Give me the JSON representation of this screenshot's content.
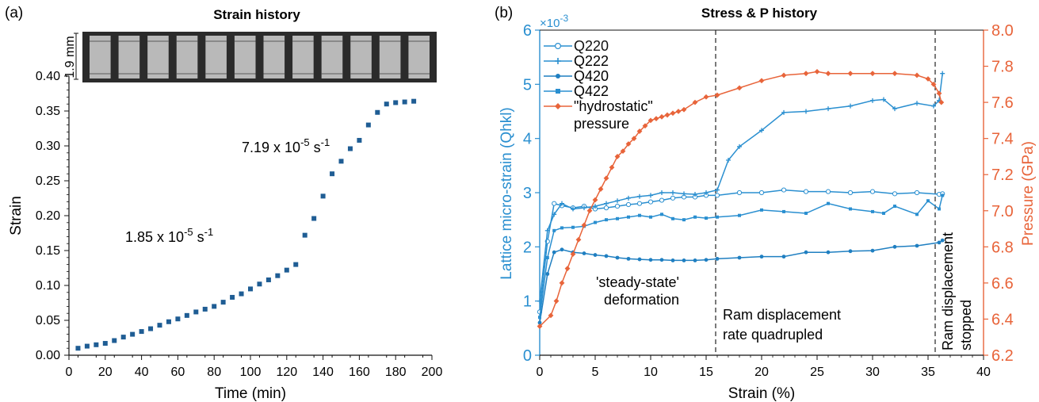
{
  "panel_a": {
    "panel_label": "(a)",
    "title": "Strain history",
    "scale_label": "1.9 mm",
    "xlabel": "Time (min)",
    "ylabel": "Strain",
    "x_ticks": [
      "0",
      "20",
      "40",
      "60",
      "80",
      "100",
      "120",
      "140",
      "160",
      "180",
      "200"
    ],
    "y_ticks": [
      "0.00",
      "0.05",
      "0.10",
      "0.15",
      "0.20",
      "0.25",
      "0.30",
      "0.35",
      "0.40"
    ],
    "annotation_rate1_base": "1.85 x 10",
    "annotation_rate1_exp": "-5",
    "annotation_rate1_unit": " s",
    "annotation_rate1_unit_exp": "-1",
    "annotation_rate2_base": "7.19 x 10",
    "annotation_rate2_exp": "-5",
    "annotation_rate2_unit": " s",
    "annotation_rate2_unit_exp": "-1",
    "radiograph_frames": 12
  },
  "panel_b": {
    "panel_label": "(b)",
    "title": "Stress & P history",
    "xlabel": "Strain (%)",
    "ylabel_left": "Lattice micro-strain (Qhkl)",
    "ylabel_right": "Pressure (GPa)",
    "left_multiplier": "×10",
    "left_multiplier_exp": "-3",
    "x_ticks": [
      "0",
      "5",
      "10",
      "15",
      "20",
      "25",
      "30",
      "35",
      "40"
    ],
    "left_ticks": [
      "0",
      "1",
      "2",
      "3",
      "4",
      "5",
      "6"
    ],
    "right_ticks": [
      "6.2",
      "6.4",
      "6.6",
      "6.8",
      "7.0",
      "7.2",
      "7.4",
      "7.6",
      "7.8",
      "8.0"
    ],
    "legend": [
      "Q220",
      "Q222",
      "Q420",
      "Q422",
      "\"hydrostatic\"",
      "pressure"
    ],
    "annotation_steady_1": "'steady-state'",
    "annotation_steady_2": "deformation",
    "annotation_ram_1": "Ram displacement",
    "annotation_ram_2": "rate quadrupled",
    "annotation_stop_1": "Ram displacement",
    "annotation_stop_2": "stopped"
  },
  "colors": {
    "blue": "#2a8fd0",
    "dark_blue": "#1f5d94",
    "orange": "#e8643a",
    "text": "#111111"
  },
  "chart_data": [
    {
      "type": "scatter",
      "title": "Strain history",
      "xlabel": "Time (min)",
      "ylabel": "Strain",
      "xlim": [
        0,
        200
      ],
      "ylim": [
        0,
        0.4
      ],
      "x": [
        5,
        10,
        15,
        20,
        25,
        30,
        35,
        40,
        45,
        50,
        55,
        60,
        65,
        70,
        75,
        80,
        85,
        90,
        95,
        100,
        105,
        110,
        115,
        120,
        125,
        130,
        135,
        140,
        145,
        150,
        155,
        160,
        165,
        170,
        175,
        180,
        185,
        190
      ],
      "y": [
        0.01,
        0.013,
        0.015,
        0.017,
        0.021,
        0.026,
        0.03,
        0.034,
        0.038,
        0.043,
        0.048,
        0.052,
        0.057,
        0.062,
        0.066,
        0.07,
        0.076,
        0.083,
        0.088,
        0.095,
        0.102,
        0.108,
        0.114,
        0.122,
        0.13,
        0.172,
        0.196,
        0.228,
        0.26,
        0.278,
        0.296,
        0.308,
        0.33,
        0.348,
        0.36,
        0.362,
        0.363,
        0.364
      ]
    },
    {
      "type": "line",
      "title": "Stress & P history",
      "xlabel": "Strain (%)",
      "ylabel": "Lattice micro-strain (Qhkl)",
      "y2label": "Pressure (GPa)",
      "xlim": [
        0,
        40
      ],
      "ylim": [
        0,
        6
      ],
      "y2lim": [
        6.2,
        8.0
      ],
      "left_axis_scale": "x10^-3",
      "series": [
        {
          "name": "Q220",
          "axis": "left",
          "x": [
            0,
            0.7,
            1.3,
            2,
            3,
            4,
            5,
            6,
            7,
            8,
            9,
            10,
            11,
            12,
            13,
            14,
            15,
            16,
            18,
            20,
            22,
            24,
            26,
            28,
            30,
            32,
            34,
            36,
            36.3
          ],
          "y": [
            0.8,
            2.1,
            2.8,
            2.76,
            2.72,
            2.75,
            2.7,
            2.72,
            2.75,
            2.78,
            2.8,
            2.83,
            2.86,
            2.9,
            2.92,
            2.92,
            2.95,
            2.95,
            3.0,
            3.0,
            3.05,
            3.02,
            3.02,
            3.0,
            3.02,
            2.98,
            3.0,
            2.97,
            2.98
          ]
        },
        {
          "name": "Q222",
          "axis": "left",
          "x": [
            0,
            0.7,
            1.3,
            2,
            3,
            4,
            5,
            6,
            7,
            8,
            9,
            10,
            11,
            12,
            13,
            14,
            15,
            16,
            17,
            18,
            20,
            22,
            24,
            26,
            28,
            30,
            31,
            32,
            34,
            35.5,
            36,
            36.3
          ],
          "y": [
            1.0,
            2.3,
            2.6,
            2.8,
            2.7,
            2.72,
            2.75,
            2.8,
            2.85,
            2.9,
            2.93,
            2.95,
            3.0,
            3.0,
            2.98,
            2.97,
            3.0,
            3.05,
            3.6,
            3.85,
            4.15,
            4.48,
            4.5,
            4.55,
            4.6,
            4.7,
            4.72,
            4.55,
            4.65,
            4.6,
            4.7,
            5.2
          ]
        },
        {
          "name": "Q420",
          "axis": "left",
          "x": [
            0,
            0.7,
            1.3,
            2,
            3,
            4,
            5,
            6,
            7,
            8,
            9,
            10,
            11,
            12,
            13,
            14,
            15,
            16,
            18,
            20,
            22,
            24,
            26,
            28,
            30,
            32,
            34,
            36,
            36.3
          ],
          "y": [
            0.6,
            1.5,
            1.9,
            1.95,
            1.9,
            1.88,
            1.85,
            1.83,
            1.8,
            1.78,
            1.77,
            1.76,
            1.76,
            1.75,
            1.75,
            1.75,
            1.76,
            1.78,
            1.8,
            1.82,
            1.82,
            1.9,
            1.9,
            1.92,
            1.93,
            2.0,
            2.02,
            2.08,
            2.12
          ]
        },
        {
          "name": "Q422",
          "axis": "left",
          "x": [
            0,
            0.7,
            1.3,
            2,
            3,
            4,
            5,
            6,
            7,
            8,
            9,
            10,
            11,
            12,
            13,
            14,
            15,
            16,
            18,
            20,
            22,
            24,
            26,
            28,
            30,
            31,
            32,
            34,
            35,
            36,
            36.3
          ],
          "y": [
            0.7,
            1.8,
            2.3,
            2.35,
            2.36,
            2.38,
            2.45,
            2.5,
            2.52,
            2.55,
            2.58,
            2.55,
            2.6,
            2.52,
            2.5,
            2.55,
            2.53,
            2.55,
            2.58,
            2.68,
            2.65,
            2.62,
            2.8,
            2.7,
            2.65,
            2.62,
            2.75,
            2.6,
            2.85,
            2.7,
            2.95
          ]
        },
        {
          "name": "\"hydrostatic\" pressure",
          "axis": "right",
          "x": [
            0,
            1,
            1.5,
            2,
            2.5,
            3,
            3.5,
            4,
            4.5,
            5,
            5.5,
            6,
            6.5,
            7,
            7.5,
            8,
            8.5,
            9,
            9.5,
            10,
            10.5,
            11,
            11.5,
            12,
            12.5,
            13,
            14,
            15,
            16,
            18,
            20,
            22,
            24,
            25,
            26,
            28,
            30,
            32,
            34,
            35,
            35.5,
            36,
            36.2
          ],
          "y": [
            6.36,
            6.42,
            6.5,
            6.6,
            6.68,
            6.76,
            6.84,
            6.92,
            7.0,
            7.06,
            7.12,
            7.18,
            7.24,
            7.3,
            7.33,
            7.37,
            7.4,
            7.44,
            7.47,
            7.5,
            7.51,
            7.52,
            7.53,
            7.54,
            7.55,
            7.56,
            7.6,
            7.63,
            7.64,
            7.68,
            7.72,
            7.75,
            7.76,
            7.77,
            7.76,
            7.76,
            7.76,
            7.76,
            7.75,
            7.73,
            7.7,
            7.65,
            7.6
          ]
        }
      ]
    }
  ]
}
